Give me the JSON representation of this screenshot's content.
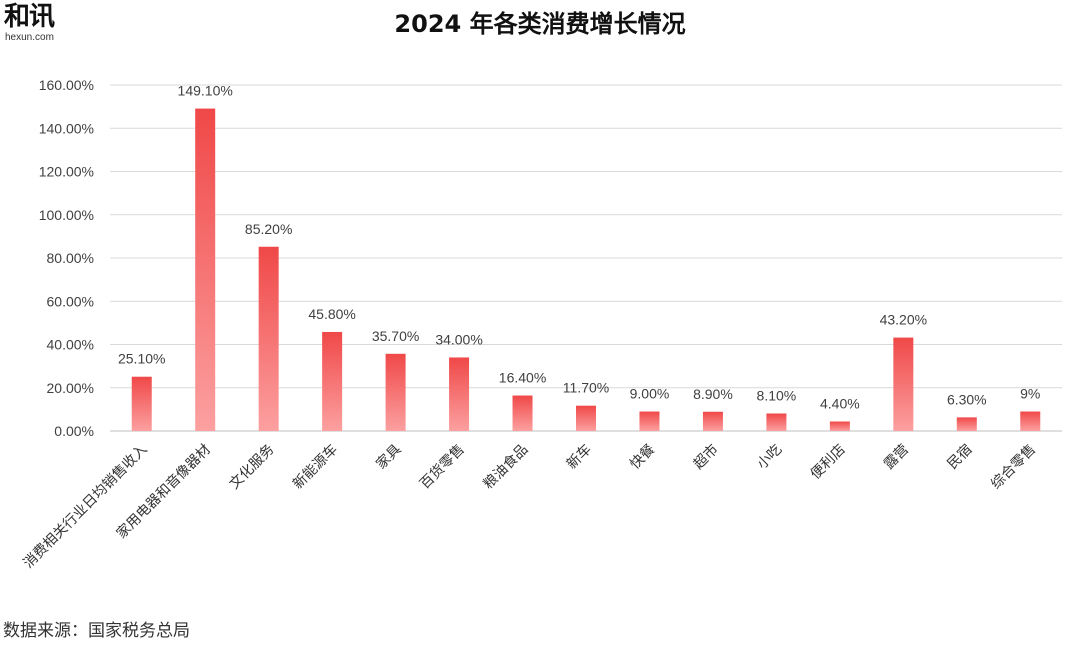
{
  "logo": {
    "main": "和讯",
    "sub": "hexun.com"
  },
  "source": "数据来源：国家税务总局",
  "colors": {
    "bar_top": "#f04848",
    "bar_bottom": "#fca0a0",
    "grid": "#d9d9d9",
    "axis": "#bfbfbf",
    "text": "#404040"
  },
  "chart_data": {
    "type": "bar",
    "title": "2024 年各类消费增长情况",
    "xlabel": "",
    "ylabel": "",
    "ylim": [
      0,
      160
    ],
    "yticks": [
      "0.00%",
      "20.00%",
      "40.00%",
      "60.00%",
      "80.00%",
      "100.00%",
      "120.00%",
      "140.00%",
      "160.00%"
    ],
    "grid": true,
    "legend": "none",
    "categories": [
      "消费相关行业日均销售收入",
      "家用电器和音像器材",
      "文化服务",
      "新能源车",
      "家具",
      "百货零售",
      "粮油食品",
      "新车",
      "快餐",
      "超市",
      "小吃",
      "便利店",
      "露营",
      "民宿",
      "综合零售"
    ],
    "values": [
      25.1,
      149.1,
      85.2,
      45.8,
      35.7,
      34.0,
      16.4,
      11.7,
      9.0,
      8.9,
      8.1,
      4.4,
      43.2,
      6.3,
      9
    ],
    "labels": [
      "25.10%",
      "149.10%",
      "85.20%",
      "45.80%",
      "35.70%",
      "34.00%",
      "16.40%",
      "11.70%",
      "9.00%",
      "8.90%",
      "8.10%",
      "4.40%",
      "43.20%",
      "6.30%",
      "9%"
    ]
  }
}
